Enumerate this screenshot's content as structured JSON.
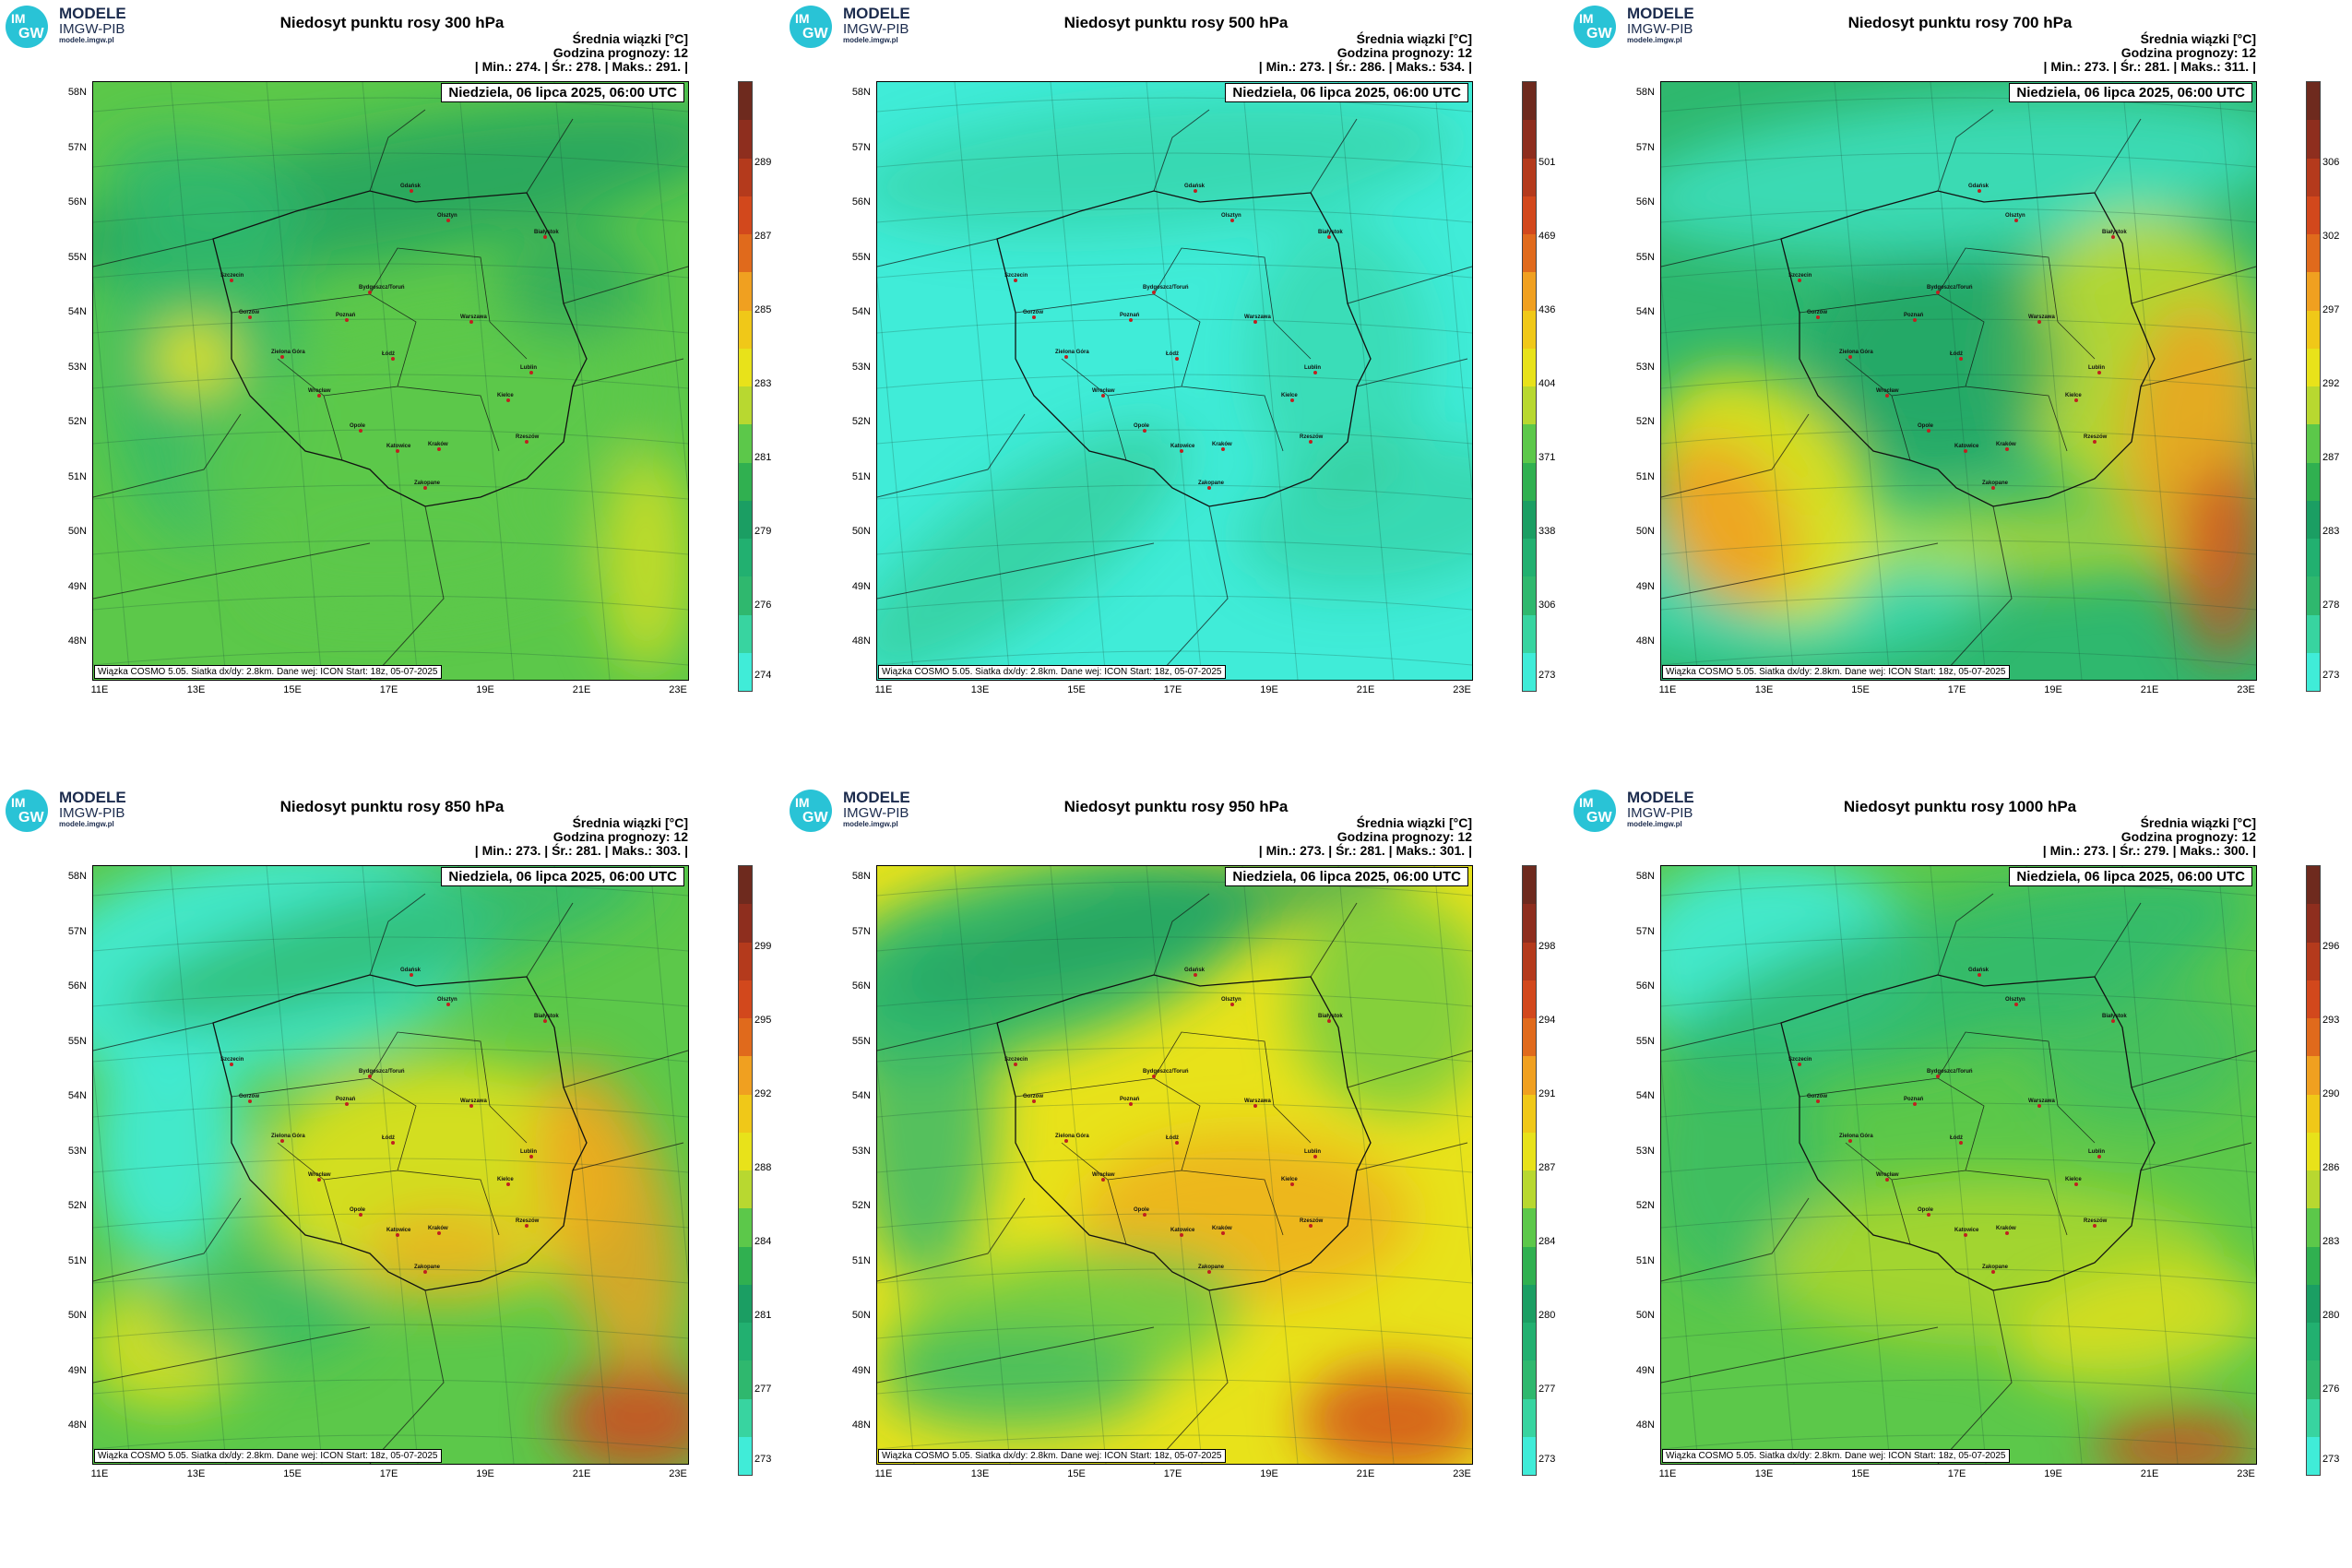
{
  "logo": {
    "disc_top": "IM",
    "disc_bottom": "GW",
    "name": "MODELE",
    "org": "IMGW-PIB",
    "url": "modele.imgw.pl"
  },
  "common": {
    "info_line1": "Średnia wiązki [°C]",
    "info_line2": "Godzina prognozy: 12",
    "date": "Niedziela, 06 lipca 2025, 06:00 UTC",
    "footer": "Wiązka COSMO 5.05. Siatka dx/dy: 2.8km. Dane wej: ICON Start: 18z, 05-07-2025",
    "lat_labels": [
      "58N",
      "57N",
      "56N",
      "55N",
      "54N",
      "53N",
      "52N",
      "51N",
      "50N",
      "49N",
      "48N"
    ],
    "lon_labels": [
      "11E",
      "13E",
      "15E",
      "17E",
      "19E",
      "21E",
      "23E"
    ]
  },
  "colors": {
    "cyan": "#40ecd8",
    "green_dark": "#1b9e63",
    "green": "#2fb86e",
    "lgreen": "#5cc84a",
    "yellow": "#e8e21a",
    "orange": "#f0a020",
    "red": "#d2481c",
    "darkred": "#6e2a1e"
  },
  "panels": [
    {
      "title": "Niedosyt punktu rosy 300 hPa",
      "stats": "| Min.: 274. | Śr.: 278. | Maks.: 291. |",
      "ticks": [
        "289",
        "287",
        "285",
        "283",
        "281",
        "279",
        "276",
        "274"
      ],
      "field": "p300"
    },
    {
      "title": "Niedosyt punktu rosy 500 hPa",
      "stats": "| Min.: 273. | Śr.: 286. | Maks.: 534. |",
      "ticks": [
        "501",
        "469",
        "436",
        "404",
        "371",
        "338",
        "306",
        "273"
      ],
      "field": "p500"
    },
    {
      "title": "Niedosyt punktu rosy 700 hPa",
      "stats": "| Min.: 273. | Śr.: 281. | Maks.: 311. |",
      "ticks": [
        "306",
        "302",
        "297",
        "292",
        "287",
        "283",
        "278",
        "273"
      ],
      "field": "p700"
    },
    {
      "title": "Niedosyt punktu rosy 850 hPa",
      "stats": "| Min.: 273. | Śr.: 281. | Maks.: 303. |",
      "ticks": [
        "299",
        "295",
        "292",
        "288",
        "284",
        "281",
        "277",
        "273"
      ],
      "field": "p850"
    },
    {
      "title": "Niedosyt punktu rosy 950 hPa",
      "stats": "| Min.: 273. | Śr.: 281. | Maks.: 301. |",
      "ticks": [
        "298",
        "294",
        "291",
        "287",
        "284",
        "280",
        "277",
        "273"
      ],
      "field": "p950"
    },
    {
      "title": "Niedosyt punktu rosy 1000 hPa",
      "stats": "| Min.: 273. | Śr.: 279. | Maks.: 300. |",
      "ticks": [
        "296",
        "293",
        "290",
        "286",
        "283",
        "280",
        "276",
        "273"
      ],
      "field": "p1000"
    }
  ],
  "cities": [
    "Gdańsk",
    "Olsztyn",
    "Białystok",
    "Szczecin",
    "Bydgoszcz/Toruń",
    "Gorzów",
    "Poznań",
    "Warszawa",
    "Łódź",
    "Zielona Góra",
    "Lublin",
    "Wrocław",
    "Kielce",
    "Opole",
    "Katowice",
    "Kraków",
    "Rzeszów",
    "Zakopane"
  ]
}
